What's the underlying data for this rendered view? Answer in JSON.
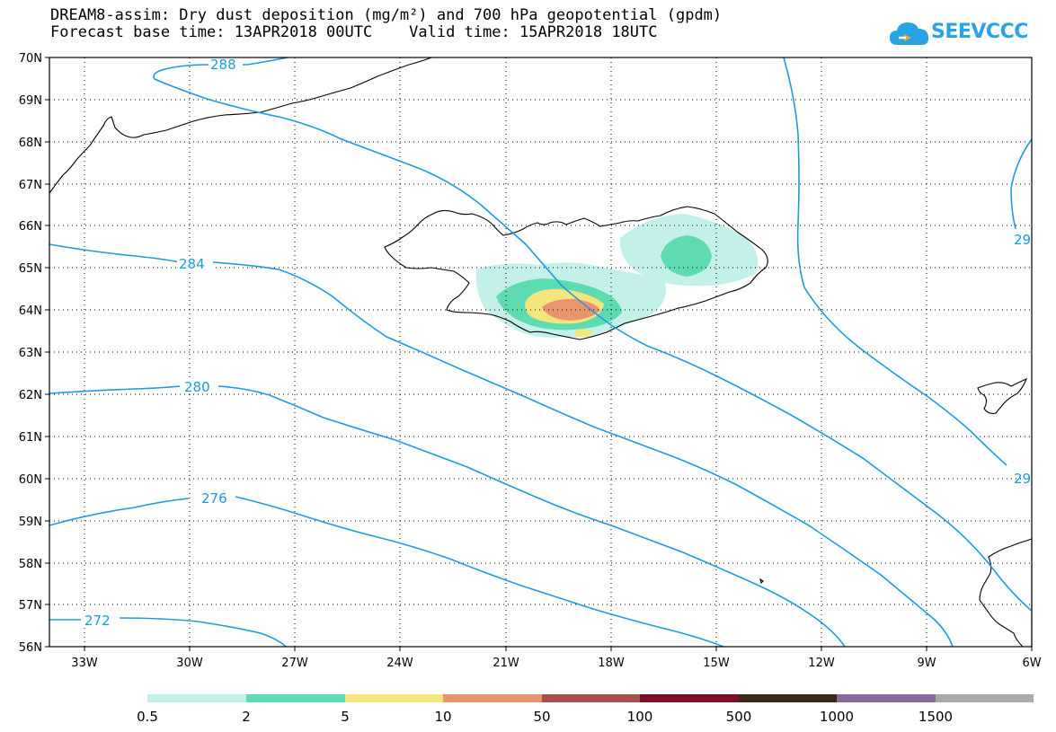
{
  "title": {
    "line1": "DREAM8-assim: Dry dust deposition (mg/m²) and 700 hPa geopotential (gpdm)",
    "line2": "Forecast base time: 13APR2018 00UTC    Valid time: 15APR2018 18UTC"
  },
  "logo": {
    "text": "SEEVCCC",
    "icon": "cloud-arrow-icon",
    "color": "#2aa3e6"
  },
  "map": {
    "lon_range": [
      -34.0,
      -6.0
    ],
    "lat_range": [
      56,
      70
    ],
    "lat_labels": [
      "56N",
      "57N",
      "58N",
      "59N",
      "60N",
      "61N",
      "62N",
      "63N",
      "64N",
      "65N",
      "66N",
      "67N",
      "68N",
      "69N",
      "70N"
    ],
    "lon_labels": [
      "33W",
      "30W",
      "27W",
      "24W",
      "21W",
      "18W",
      "15W",
      "12W",
      "9W",
      "6W"
    ],
    "grid": "dotted"
  },
  "contours": {
    "variable": "700 hPa geopotential (gpdm)",
    "color": "#1e9be0",
    "labels": [
      "288",
      "284",
      "280",
      "276",
      "272",
      "29",
      "29"
    ]
  },
  "legend": {
    "colors": [
      "#c4f0ea",
      "#5edbb0",
      "#f4e67c",
      "#ea9470",
      "#a8504a",
      "#800e28",
      "#3a2818",
      "#8a68a0",
      "#aaaaaa"
    ],
    "labels": [
      "0.5",
      "2",
      "5",
      "10",
      "50",
      "100",
      "500",
      "1000",
      "1500"
    ]
  }
}
